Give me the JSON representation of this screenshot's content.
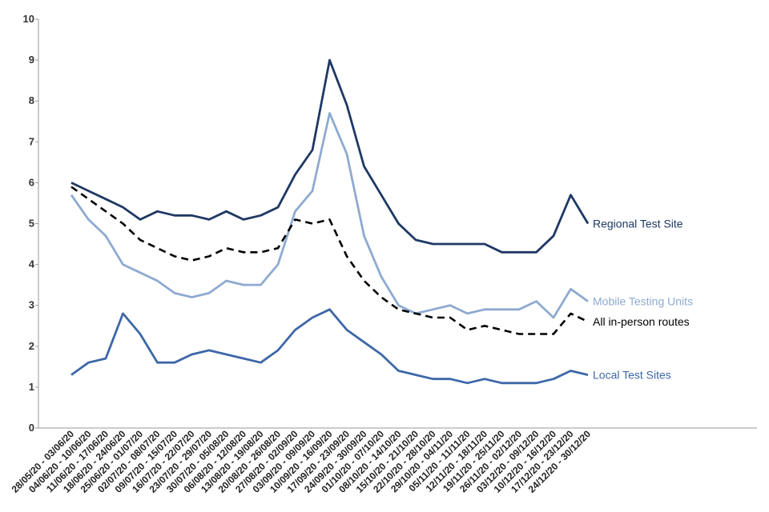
{
  "chart_data": {
    "type": "line",
    "title": "",
    "xlabel": "",
    "ylabel": "",
    "ylim": [
      0,
      10
    ],
    "yticks": [
      0,
      1,
      2,
      3,
      4,
      5,
      6,
      7,
      8,
      9,
      10
    ],
    "grid": false,
    "categories": [
      "28/05/20 - 03/06/20",
      "04/06/20 - 10/06/20",
      "11/06/20 - 17/06/20",
      "18/06/20 - 24/06/20",
      "25/06/20 - 01/07/20",
      "02/07/20 - 08/07/20",
      "09/07/20 - 15/07/20",
      "16/07/20 - 22/07/20",
      "23/07/20 - 29/07/20",
      "30/07/20 - 05/08/20",
      "06/08/20 - 12/08/20",
      "13/08/20 - 19/08/20",
      "20/08/20 - 26/08/20",
      "27/08/20 - 02/09/20",
      "03/09/20 - 09/09/20",
      "10/09/20 - 16/09/20",
      "17/09/20 - 23/09/20",
      "24/09/20 - 30/09/20",
      "01/10/20 - 07/10/20",
      "08/10/20 - 14/10/20",
      "15/10/20 - 21/10/20",
      "22/10/20 - 28/10/20",
      "29/10/20 - 04/11/20",
      "05/11/20 - 11/11/20",
      "12/11/20 - 18/11/20",
      "19/11/20 - 25/11/20",
      "26/11/20 - 02/12/20",
      "03/12/20 - 09/12/20",
      "10/12/20 - 16/12/20",
      "17/12/20 - 23/12/20",
      "24/12/20 - 30/12/20"
    ],
    "series": [
      {
        "name": "Regional Test Site",
        "color": "#1f3864",
        "dashed": false,
        "values": [
          6.0,
          5.8,
          5.6,
          5.4,
          5.1,
          5.3,
          5.2,
          5.2,
          5.1,
          5.3,
          5.1,
          5.2,
          5.4,
          6.2,
          6.8,
          9.0,
          7.9,
          6.4,
          5.7,
          5.0,
          4.6,
          4.5,
          4.5,
          4.5,
          4.5,
          4.3,
          4.3,
          4.3,
          4.7,
          5.7,
          5.0
        ]
      },
      {
        "name": "Mobile Testing Units",
        "color": "#8eaad0",
        "dashed": false,
        "values": [
          5.7,
          5.1,
          4.7,
          4.0,
          3.8,
          3.6,
          3.3,
          3.2,
          3.3,
          3.6,
          3.5,
          3.5,
          4.0,
          5.3,
          5.8,
          7.7,
          6.7,
          4.7,
          3.7,
          3.0,
          2.8,
          2.9,
          3.0,
          2.8,
          2.9,
          2.9,
          2.9,
          3.1,
          2.7,
          3.4,
          3.1
        ]
      },
      {
        "name": "All in-person routes",
        "color": "#000000",
        "dashed": true,
        "values": [
          5.9,
          5.6,
          5.3,
          5.0,
          4.6,
          4.4,
          4.2,
          4.1,
          4.2,
          4.4,
          4.3,
          4.3,
          4.4,
          5.1,
          5.0,
          5.1,
          4.2,
          3.6,
          3.2,
          2.9,
          2.8,
          2.7,
          2.7,
          2.4,
          2.5,
          2.4,
          2.3,
          2.3,
          2.3,
          2.8,
          2.6
        ]
      },
      {
        "name": "Local Test Sites",
        "color": "#3d67a8",
        "dashed": false,
        "values": [
          1.3,
          1.6,
          1.7,
          2.8,
          2.3,
          1.6,
          1.6,
          1.8,
          1.9,
          1.8,
          1.7,
          1.6,
          1.9,
          2.4,
          2.7,
          2.9,
          2.4,
          2.1,
          1.8,
          1.4,
          1.3,
          1.2,
          1.2,
          1.1,
          1.2,
          1.1,
          1.1,
          1.1,
          1.2,
          1.4,
          1.3
        ]
      }
    ]
  }
}
